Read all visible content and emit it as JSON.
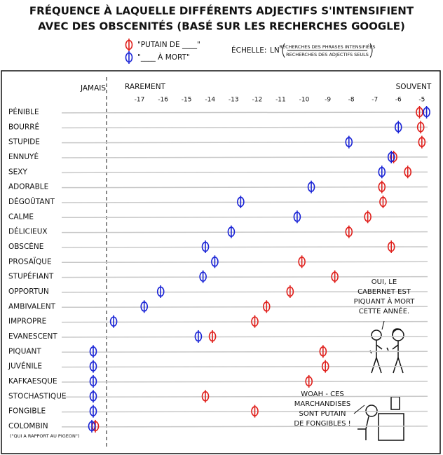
{
  "chart_data": {
    "type": "dot",
    "title": [
      "FRÉQUENCE À LAQUELLE DIFFÉRENTS ADJECTIFS S'INTENSIFIENT",
      "AVEC DES OBSCENITÉS (BASÉ SUR LES RECHERCHES GOOGLE)"
    ],
    "scale_label": "ÉCHELLE:",
    "scale_function": "LN",
    "scale_numerator": "RECHERCHES DES PHRASES INTENSIFIÉES",
    "scale_denominator": "RECHERCHES DES ADJECTIFS SEULS",
    "column_labels": {
      "never": "JAMAIS",
      "rarely": "RAREMENT",
      "often": "SOUVENT"
    },
    "categories": [
      "PÉNIBLE",
      "BOURRÉ",
      "STUPIDE",
      "ENNUYÉ",
      "SEXY",
      "ADORABLE",
      "DÉGOÛTANT",
      "CALME",
      "DÉLICIEUX",
      "OBSCÈNE",
      "PROSAÏQUE",
      "STUPÉFIANT",
      "OPPORTUN",
      "AMBIVALENT",
      "IMPROPRE",
      "EVANESCENT",
      "PIQUANT",
      "JUVÉNILE",
      "KAFKAESQUE",
      "STOCHASTIQUE",
      "FONGIBLE",
      "COLOMBIN"
    ],
    "category_note": "(\"QUI A RAPPORT AU PIGEON\")",
    "series": [
      {
        "name": "\"PUTAIN DE ____\"",
        "color": "#e0201c",
        "values": [
          -5.1,
          -5.05,
          -5.0,
          -6.2,
          -5.6,
          -6.7,
          -6.65,
          -7.3,
          -8.1,
          -6.3,
          -10.1,
          -8.7,
          -10.6,
          -11.6,
          -12.1,
          -13.9,
          -9.2,
          -9.1,
          -9.8,
          -14.2,
          -12.1,
          null
        ]
      },
      {
        "name": "\"____ À MORT\"",
        "color": "#1a24d6",
        "values": [
          -4.8,
          -6.0,
          -8.1,
          -6.3,
          -6.7,
          -9.7,
          -12.7,
          -10.3,
          -13.1,
          -14.2,
          -13.8,
          -14.3,
          -16.1,
          -16.8,
          -18.1,
          -14.5,
          null,
          null,
          null,
          null,
          null,
          null
        ]
      }
    ],
    "xlim": [
      -18.4,
      -4.4
    ],
    "xticks": [
      -17,
      -16,
      -15,
      -14,
      -13,
      -12,
      -11,
      -10,
      -9,
      -8,
      -7,
      -6,
      -5
    ],
    "speech": [
      [
        "OUI, LE",
        "CABERNET EST",
        "PIQUANT À MORT",
        "CETTE ANNÉE."
      ],
      [
        "WOAH - CES",
        "MARCHANDISES",
        "SONT PUTAIN",
        "DE FONGIBLES !"
      ]
    ]
  }
}
